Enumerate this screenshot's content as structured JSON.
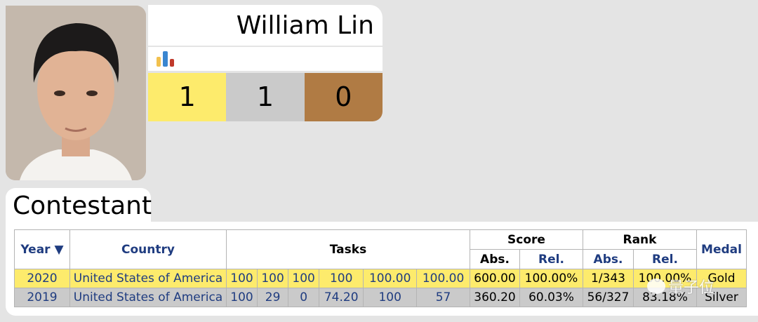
{
  "profile": {
    "name": "William Lin",
    "medal_counts": {
      "gold": "1",
      "silver": "1",
      "bronze": "0"
    },
    "chart_icon": "bar-chart-icon",
    "colors": {
      "gold": "#fdeb6c",
      "silver": "#cacaca",
      "bronze": "#b07b44"
    }
  },
  "section_tab": "Contestant",
  "table": {
    "headers": {
      "year": "Year ▼",
      "country": "Country",
      "tasks": "Tasks",
      "score": "Score",
      "rank": "Rank",
      "medal": "Medal",
      "score_abs": "Abs.",
      "score_rel": "Rel.",
      "rank_abs": "Abs.",
      "rank_rel": "Rel."
    },
    "rows": [
      {
        "year": "2020",
        "country": "United States of America",
        "tasks": [
          "100",
          "100",
          "100",
          "100",
          "100.00",
          "100.00"
        ],
        "score_abs": "600.00",
        "score_rel": "100.00%",
        "rank_abs": "1/343",
        "rank_rel": "100.00%",
        "medal": "Gold"
      },
      {
        "year": "2019",
        "country": "United States of America",
        "tasks": [
          "100",
          "29",
          "0",
          "74.20",
          "100",
          "57"
        ],
        "score_abs": "360.20",
        "score_rel": "60.03%",
        "rank_abs": "56/327",
        "rank_rel": "83.18%",
        "medal": "Silver"
      }
    ]
  },
  "watermark": "量子位"
}
